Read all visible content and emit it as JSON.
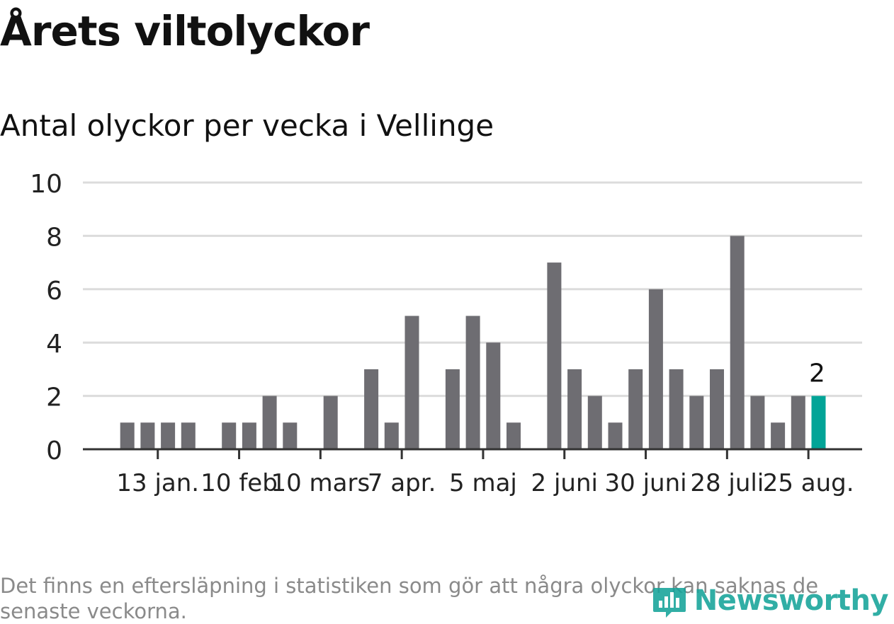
{
  "header": {
    "title": "Årets viltolyckor",
    "subtitle": "Antal olyckor per vecka i Vellinge"
  },
  "footer": {
    "note": "Det finns en eftersläpning i statistiken som gör att några olyckor kan saknas de senaste veckorna.",
    "brand": "Newsworthy"
  },
  "colors": {
    "bar": "#6e6d72",
    "highlight": "#02a497",
    "grid": "#dcdcdc",
    "axis": "#333333",
    "brand": "#15a399"
  },
  "chart_data": {
    "type": "bar",
    "title": "Antal olyckor per vecka i Vellinge",
    "xlabel": "",
    "ylabel": "",
    "ylim": [
      0,
      10
    ],
    "yticks": [
      0,
      2,
      4,
      6,
      8,
      10
    ],
    "grid": true,
    "week_start": 1,
    "values": [
      0,
      1,
      1,
      1,
      1,
      0,
      1,
      1,
      2,
      1,
      0,
      2,
      0,
      3,
      1,
      5,
      0,
      3,
      5,
      4,
      1,
      0,
      7,
      3,
      2,
      1,
      3,
      6,
      3,
      2,
      3,
      8,
      2,
      1,
      2,
      2
    ],
    "highlight_index": 35,
    "highlight_label": "2",
    "xtick_labels": [
      {
        "week": 3,
        "label": "13 jan."
      },
      {
        "week": 7,
        "label": "10 feb"
      },
      {
        "week": 11,
        "label": "10 mars"
      },
      {
        "week": 15,
        "label": "7 apr."
      },
      {
        "week": 19,
        "label": "5 maj"
      },
      {
        "week": 23,
        "label": "2 juni"
      },
      {
        "week": 27,
        "label": "30 juni"
      },
      {
        "week": 31,
        "label": "28 juli"
      },
      {
        "week": 35,
        "label": "25 aug."
      }
    ]
  }
}
